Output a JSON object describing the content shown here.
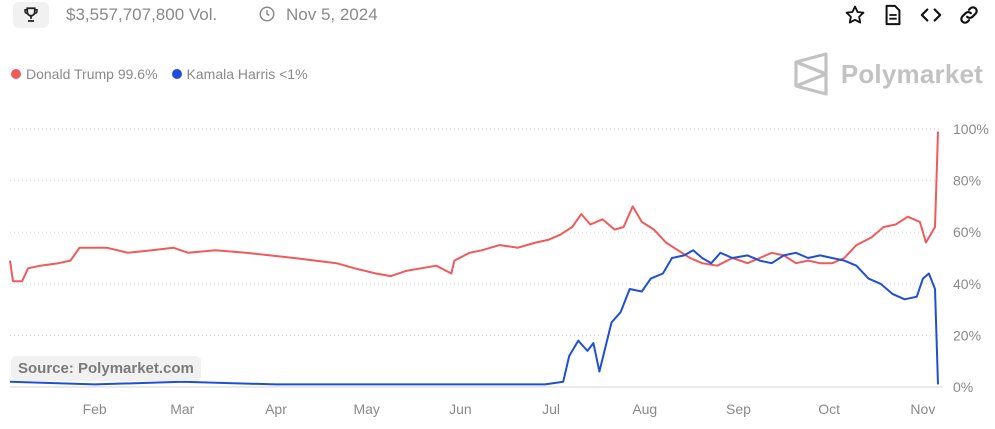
{
  "header": {
    "volume": "$3,557,707,800 Vol.",
    "date": "Nov 5, 2024",
    "icons": [
      "trophy-icon",
      "clock-icon",
      "star-icon",
      "document-icon",
      "code-icon",
      "link-icon"
    ]
  },
  "brand": {
    "name": "Polymarket",
    "color": "#c2c2c2"
  },
  "legend": [
    {
      "label": "Donald Trump 99.6%",
      "color": "#f05a5a"
    },
    {
      "label": "Kamala Harris <1%",
      "color": "#1f4fd8"
    }
  ],
  "source_label": "Source: Polymarket.com",
  "chart_data": {
    "type": "line",
    "x_ticks": [
      "Feb",
      "Mar",
      "Apr",
      "May",
      "Jun",
      "Jul",
      "Aug",
      "Sep",
      "Oct",
      "Nov"
    ],
    "y_ticks": [
      "100%",
      "80%",
      "60%",
      "40%",
      "20%",
      "0%"
    ],
    "ylim": [
      0,
      100
    ],
    "xlim": [
      "2024-01-04",
      "2024-11-06"
    ],
    "grid": "dotted horizontal",
    "series": [
      {
        "name": "Donald Trump",
        "color": "#f05a5a",
        "points": [
          [
            "2024-01-04",
            49
          ],
          [
            "2024-01-05",
            41
          ],
          [
            "2024-01-08",
            41
          ],
          [
            "2024-01-10",
            46
          ],
          [
            "2024-01-14",
            47
          ],
          [
            "2024-01-20",
            48
          ],
          [
            "2024-01-24",
            49
          ],
          [
            "2024-01-27",
            54
          ],
          [
            "2024-02-05",
            54
          ],
          [
            "2024-02-12",
            52
          ],
          [
            "2024-02-20",
            53
          ],
          [
            "2024-02-27",
            54
          ],
          [
            "2024-03-03",
            52
          ],
          [
            "2024-03-12",
            53
          ],
          [
            "2024-03-22",
            52
          ],
          [
            "2024-03-30",
            51
          ],
          [
            "2024-04-07",
            50
          ],
          [
            "2024-04-14",
            49
          ],
          [
            "2024-04-21",
            48
          ],
          [
            "2024-04-27",
            46
          ],
          [
            "2024-05-04",
            44
          ],
          [
            "2024-05-09",
            43
          ],
          [
            "2024-05-14",
            45
          ],
          [
            "2024-05-19",
            46
          ],
          [
            "2024-05-24",
            47
          ],
          [
            "2024-05-29",
            44
          ],
          [
            "2024-05-30",
            49
          ],
          [
            "2024-06-04",
            52
          ],
          [
            "2024-06-08",
            53
          ],
          [
            "2024-06-14",
            55
          ],
          [
            "2024-06-20",
            54
          ],
          [
            "2024-06-26",
            56
          ],
          [
            "2024-06-30",
            57
          ],
          [
            "2024-07-04",
            59
          ],
          [
            "2024-07-08",
            62
          ],
          [
            "2024-07-11",
            67
          ],
          [
            "2024-07-14",
            63
          ],
          [
            "2024-07-18",
            65
          ],
          [
            "2024-07-22",
            61
          ],
          [
            "2024-07-25",
            62
          ],
          [
            "2024-07-28",
            70
          ],
          [
            "2024-07-31",
            64
          ],
          [
            "2024-08-04",
            61
          ],
          [
            "2024-08-08",
            56
          ],
          [
            "2024-08-12",
            53
          ],
          [
            "2024-08-16",
            50
          ],
          [
            "2024-08-20",
            48
          ],
          [
            "2024-08-25",
            47
          ],
          [
            "2024-08-30",
            50
          ],
          [
            "2024-09-04",
            48
          ],
          [
            "2024-09-08",
            50
          ],
          [
            "2024-09-12",
            52
          ],
          [
            "2024-09-16",
            51
          ],
          [
            "2024-09-20",
            48
          ],
          [
            "2024-09-24",
            49
          ],
          [
            "2024-09-28",
            48
          ],
          [
            "2024-10-02",
            48
          ],
          [
            "2024-10-06",
            50
          ],
          [
            "2024-10-10",
            55
          ],
          [
            "2024-10-15",
            58
          ],
          [
            "2024-10-19",
            62
          ],
          [
            "2024-10-23",
            63
          ],
          [
            "2024-10-27",
            66
          ],
          [
            "2024-10-31",
            64
          ],
          [
            "2024-11-02",
            56
          ],
          [
            "2024-11-04",
            60
          ],
          [
            "2024-11-05",
            62
          ],
          [
            "2024-11-06",
            99
          ]
        ]
      },
      {
        "name": "Kamala Harris",
        "color": "#1f4fd8",
        "points": [
          [
            "2024-01-04",
            2
          ],
          [
            "2024-02-01",
            1
          ],
          [
            "2024-03-01",
            2
          ],
          [
            "2024-04-01",
            1
          ],
          [
            "2024-05-01",
            1
          ],
          [
            "2024-06-01",
            1
          ],
          [
            "2024-06-29",
            1
          ],
          [
            "2024-07-05",
            2
          ],
          [
            "2024-07-07",
            12
          ],
          [
            "2024-07-10",
            18
          ],
          [
            "2024-07-13",
            14
          ],
          [
            "2024-07-15",
            17
          ],
          [
            "2024-07-17",
            6
          ],
          [
            "2024-07-21",
            25
          ],
          [
            "2024-07-24",
            29
          ],
          [
            "2024-07-27",
            38
          ],
          [
            "2024-07-31",
            37
          ],
          [
            "2024-08-03",
            42
          ],
          [
            "2024-08-07",
            44
          ],
          [
            "2024-08-10",
            50
          ],
          [
            "2024-08-14",
            51
          ],
          [
            "2024-08-17",
            53
          ],
          [
            "2024-08-20",
            50
          ],
          [
            "2024-08-23",
            48
          ],
          [
            "2024-08-26",
            52
          ],
          [
            "2024-08-30",
            50
          ],
          [
            "2024-09-04",
            51
          ],
          [
            "2024-09-08",
            49
          ],
          [
            "2024-09-12",
            48
          ],
          [
            "2024-09-16",
            51
          ],
          [
            "2024-09-20",
            52
          ],
          [
            "2024-09-24",
            50
          ],
          [
            "2024-09-28",
            51
          ],
          [
            "2024-10-02",
            50
          ],
          [
            "2024-10-06",
            49
          ],
          [
            "2024-10-10",
            47
          ],
          [
            "2024-10-14",
            42
          ],
          [
            "2024-10-18",
            40
          ],
          [
            "2024-10-22",
            36
          ],
          [
            "2024-10-26",
            34
          ],
          [
            "2024-10-30",
            35
          ],
          [
            "2024-11-01",
            42
          ],
          [
            "2024-11-03",
            44
          ],
          [
            "2024-11-05",
            38
          ],
          [
            "2024-11-06",
            1
          ]
        ]
      }
    ]
  }
}
